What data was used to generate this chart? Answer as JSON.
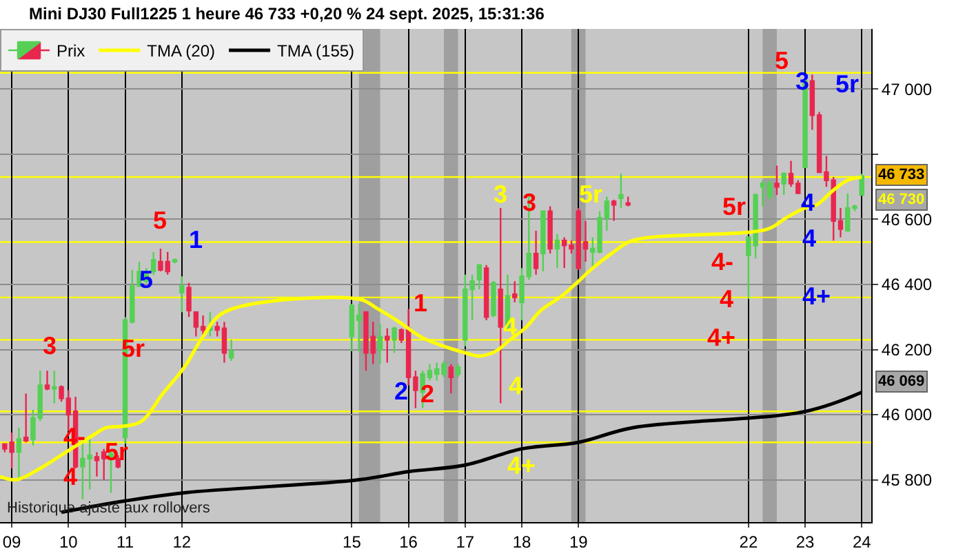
{
  "chart_data": {
    "type": "candlestick",
    "title": "Mini DJ30 Full1225 1 heure 46 733 +0,20 % 24 sept. 2025, 15:31:36",
    "xlim": [
      "2025-09-08T19:00",
      "2025-09-24T04:00"
    ],
    "xticks": [
      {
        "value": "2025-09-09",
        "label": "09"
      },
      {
        "value": "2025-09-10",
        "label": "10"
      },
      {
        "value": "2025-09-11",
        "label": "11"
      },
      {
        "value": "2025-09-12",
        "label": "12"
      },
      {
        "value": "2025-09-15",
        "label": "15"
      },
      {
        "value": "2025-09-16",
        "label": "16"
      },
      {
        "value": "2025-09-17",
        "label": "17"
      },
      {
        "value": "2025-09-18",
        "label": "18"
      },
      {
        "value": "2025-09-19",
        "label": "19"
      },
      {
        "value": "2025-09-22",
        "label": "22"
      },
      {
        "value": "2025-09-23",
        "label": "23"
      },
      {
        "value": "2025-09-24",
        "label": "24"
      }
    ],
    "ylim": [
      45670,
      47185
    ],
    "yticks": [
      {
        "value": 45800,
        "label": "45 800"
      },
      {
        "value": 46000,
        "label": "46 000"
      },
      {
        "value": 46200,
        "label": "46 200"
      },
      {
        "value": 46400,
        "label": "46 400"
      },
      {
        "value": 46600,
        "label": "46 600"
      },
      {
        "value": 46800,
        "label": null
      },
      {
        "value": 47000,
        "label": "47 000"
      }
    ],
    "grid": true,
    "legend": "top left",
    "series": [
      {
        "name": "Prix",
        "x": [
          "2025-09-08T21:00",
          "2025-09-09T00:00",
          "2025-09-09T03:00",
          "2025-09-09T06:00",
          "2025-09-09T09:00",
          "2025-09-09T12:00",
          "2025-09-09T15:00",
          "2025-09-09T18:00",
          "2025-09-09T21:00",
          "2025-09-10T00:00",
          "2025-09-10T03:00",
          "2025-09-10T06:00",
          "2025-09-10T09:00",
          "2025-09-10T12:00",
          "2025-09-10T15:00",
          "2025-09-10T18:00",
          "2025-09-10T21:00",
          "2025-09-11T00:00",
          "2025-09-11T03:00",
          "2025-09-11T06:00",
          "2025-09-11T09:00",
          "2025-09-11T12:00",
          "2025-09-11T15:00",
          "2025-09-11T18:00",
          "2025-09-11T21:00",
          "2025-09-12T00:00",
          "2025-09-12T03:00",
          "2025-09-12T06:00",
          "2025-09-12T09:00",
          "2025-09-12T12:00",
          "2025-09-12T15:00",
          "2025-09-12T18:00",
          "2025-09-12T21:00",
          "2025-09-15T00:00",
          "2025-09-15T03:00",
          "2025-09-15T06:00",
          "2025-09-15T09:00",
          "2025-09-15T12:00",
          "2025-09-15T15:00",
          "2025-09-15T18:00",
          "2025-09-15T21:00",
          "2025-09-16T00:00",
          "2025-09-16T03:00",
          "2025-09-16T06:00",
          "2025-09-16T09:00",
          "2025-09-16T12:00",
          "2025-09-16T15:00",
          "2025-09-16T18:00",
          "2025-09-16T21:00",
          "2025-09-17T00:00",
          "2025-09-17T03:00",
          "2025-09-17T06:00",
          "2025-09-17T09:00",
          "2025-09-17T12:00",
          "2025-09-17T15:00",
          "2025-09-17T18:00",
          "2025-09-17T21:00",
          "2025-09-18T00:00",
          "2025-09-18T03:00",
          "2025-09-18T06:00",
          "2025-09-18T09:00",
          "2025-09-18T12:00",
          "2025-09-18T15:00",
          "2025-09-18T18:00",
          "2025-09-18T21:00",
          "2025-09-19T00:00",
          "2025-09-19T03:00",
          "2025-09-19T06:00",
          "2025-09-19T09:00",
          "2025-09-19T12:00",
          "2025-09-19T15:00",
          "2025-09-19T18:00",
          "2025-09-19T21:00",
          "2025-09-22T00:00",
          "2025-09-22T03:00",
          "2025-09-22T06:00",
          "2025-09-22T09:00",
          "2025-09-22T12:00",
          "2025-09-22T15:00",
          "2025-09-22T18:00",
          "2025-09-22T21:00",
          "2025-09-23T00:00",
          "2025-09-23T03:00",
          "2025-09-23T06:00",
          "2025-09-23T09:00",
          "2025-09-23T12:00",
          "2025-09-23T15:00",
          "2025-09-23T18:00",
          "2025-09-23T21:00",
          "2025-09-24T00:00"
        ],
        "colors": [
          "#e8274f",
          "#e8274f",
          "#55d055",
          "#e8274f",
          "#55d055",
          "#55d055",
          "#e8274f",
          "#55d055",
          "#e8274f",
          "#e8274f",
          "#e8274f",
          "#55d055",
          "#55d055",
          "#e8274f",
          "#e8274f",
          "#55d055",
          "#e8274f",
          "#55d055",
          "#55d055",
          "#55d055",
          "#55d055",
          "#55d055",
          "#e8274f",
          "#e8274f",
          "#55d055",
          "#55d055",
          "#e8274f",
          "#e8274f",
          "#e8274f",
          "#55d055",
          "#e8274f",
          "#e8274f",
          "#55d055",
          "#55d055",
          "#55d055",
          "#e8274f",
          "#e8274f",
          "#55d055",
          "#e8274f",
          "#55d055",
          "#e8274f",
          "#e8274f",
          "#e8274f",
          "#55d055",
          "#55d055",
          "#55d055",
          "#55d055",
          "#e8274f",
          "#55d055",
          "#55d055",
          "#55d055",
          "#55d055",
          "#e8274f",
          "#55d055",
          "#e8274f",
          "#55d055",
          "#e8274f",
          "#55d055",
          "#55d055",
          "#e8274f",
          "#55d055",
          "#e8274f",
          "#55d055",
          "#e8274f",
          "#e8274f",
          "#e8274f",
          "#e8274f",
          "#55d055",
          "#55d055",
          "#55d055",
          "#e8274f",
          "#55d055",
          "#e8274f",
          "#55d055",
          "#55d055",
          "#55d055",
          "#55d055",
          "#e8274f",
          "#55d055",
          "#e8274f",
          "#e8274f",
          "#55d055",
          "#e8274f",
          "#e8274f",
          "#e8274f",
          "#e8274f",
          "#e8274f",
          "#55d055",
          "#55d055",
          "#55d055"
        ],
        "ohlc": [
          [
            45910,
            45910,
            45885,
            45895
          ],
          [
            45915,
            45945,
            45835,
            45885
          ],
          [
            45885,
            45960,
            45800,
            45925
          ],
          [
            45930,
            46065,
            45915,
            45920
          ],
          [
            45925,
            46015,
            45905,
            45990
          ],
          [
            45990,
            46135,
            45980,
            46090
          ],
          [
            46090,
            46135,
            46075,
            46080
          ],
          [
            46080,
            46135,
            46035,
            46085
          ],
          [
            46085,
            46090,
            46040,
            46050
          ],
          [
            46050,
            46075,
            45950,
            46000
          ],
          [
            46010,
            46055,
            45835,
            45840
          ],
          [
            45840,
            45925,
            45740,
            45865
          ],
          [
            45865,
            45925,
            45770,
            45875
          ],
          [
            45870,
            45885,
            45810,
            45860
          ],
          [
            45885,
            45895,
            45800,
            45865
          ],
          [
            45865,
            45895,
            45760,
            45880
          ],
          [
            45865,
            45875,
            45835,
            45840
          ],
          [
            45930,
            46300,
            45910,
            46290
          ],
          [
            46285,
            46445,
            46280,
            46395
          ],
          [
            46395,
            46470,
            46395,
            46440
          ],
          [
            46410,
            46450,
            46405,
            46430
          ],
          [
            46440,
            46500,
            46430,
            46475
          ],
          [
            46470,
            46510,
            46440,
            46445
          ],
          [
            46470,
            46500,
            46430,
            46440
          ],
          [
            46470,
            46480,
            46465,
            46475
          ],
          [
            46375,
            46425,
            46315,
            46395
          ],
          [
            46390,
            46405,
            46300,
            46320
          ],
          [
            46315,
            46315,
            46240,
            46270
          ],
          [
            46270,
            46305,
            46240,
            46260
          ],
          [
            46260,
            46315,
            46240,
            46270
          ],
          [
            46270,
            46285,
            46240,
            46260
          ],
          [
            46265,
            46285,
            46160,
            46190
          ],
          [
            46175,
            46230,
            46165,
            46195
          ],
          [
            46240,
            46340,
            46195,
            46335
          ],
          [
            46290,
            46340,
            46195,
            46305
          ],
          [
            46315,
            46315,
            46135,
            46190
          ],
          [
            46240,
            46285,
            46155,
            46190
          ],
          [
            46200,
            46280,
            46155,
            46240
          ],
          [
            46240,
            46265,
            46160,
            46230
          ],
          [
            46230,
            46270,
            46190,
            46265
          ],
          [
            46260,
            46265,
            46220,
            46230
          ],
          [
            46265,
            46325,
            46090,
            46115
          ],
          [
            46115,
            46135,
            46020,
            46075
          ],
          [
            46070,
            46135,
            46020,
            46125
          ],
          [
            46115,
            46155,
            46105,
            46135
          ],
          [
            46125,
            46160,
            46105,
            46140
          ],
          [
            46125,
            46165,
            46115,
            46155
          ],
          [
            46145,
            46155,
            46065,
            46115
          ],
          [
            46125,
            46155,
            46115,
            46145
          ],
          [
            46230,
            46430,
            46210,
            46385
          ],
          [
            46385,
            46430,
            46290,
            46410
          ],
          [
            46415,
            46460,
            46385,
            46460
          ],
          [
            46450,
            46460,
            46290,
            46300
          ],
          [
            46305,
            46410,
            46300,
            46405
          ],
          [
            46385,
            46635,
            46035,
            46270
          ],
          [
            46270,
            46430,
            46260,
            46365
          ],
          [
            46370,
            46410,
            46345,
            46360
          ],
          [
            46345,
            46450,
            46290,
            46425
          ],
          [
            46425,
            46675,
            46415,
            46495
          ],
          [
            46495,
            46565,
            46430,
            46450
          ],
          [
            46495,
            46625,
            46440,
            46625
          ],
          [
            46625,
            46640,
            46495,
            46510
          ],
          [
            46510,
            46555,
            46450,
            46535
          ],
          [
            46535,
            46545,
            46450,
            46520
          ],
          [
            46520,
            46535,
            46495,
            46510
          ],
          [
            46625,
            46635,
            46445,
            46450
          ],
          [
            46530,
            46595,
            46470,
            46510
          ],
          [
            46500,
            46545,
            46450,
            46510
          ],
          [
            46500,
            46625,
            46495,
            46605
          ],
          [
            46605,
            46670,
            46565,
            46655
          ],
          [
            46655,
            46660,
            46595,
            46645
          ],
          [
            46665,
            46740,
            46635,
            46675
          ],
          [
            46650,
            46670,
            46640,
            46645
          ],
          [
            46490,
            46545,
            46355,
            46545
          ],
          [
            46520,
            46680,
            46480,
            46675
          ],
          [
            46700,
            46720,
            46640,
            46710
          ],
          [
            46670,
            46720,
            46660,
            46710
          ],
          [
            46710,
            46765,
            46675,
            46700
          ],
          [
            46710,
            46745,
            46675,
            46740
          ],
          [
            46740,
            46780,
            46700,
            46710
          ],
          [
            46710,
            46720,
            46680,
            46680
          ],
          [
            46760,
            47025,
            46760,
            47025
          ],
          [
            47025,
            47045,
            46875,
            46920
          ],
          [
            46920,
            46930,
            46745,
            46745
          ],
          [
            46745,
            46795,
            46700,
            46720
          ],
          [
            46720,
            46730,
            46535,
            46595
          ],
          [
            46595,
            46635,
            46545,
            46570
          ],
          [
            46565,
            46680,
            46565,
            46635
          ],
          [
            46635,
            46645,
            46625,
            46640
          ],
          [
            46675,
            46740,
            46675,
            46733
          ]
        ]
      },
      {
        "name": "TMA (20)",
        "type": "line",
        "color": "#ffff00",
        "x": [
          "2025-09-08T19:00",
          "2025-09-09T02:00",
          "2025-09-09T12:00",
          "2025-09-09T23:00",
          "2025-09-10T10:00",
          "2025-09-10T16:00",
          "2025-09-11T00:00",
          "2025-09-11T07:00",
          "2025-09-11T16:00",
          "2025-09-12T01:00",
          "2025-09-12T09:00",
          "2025-09-12T18:00",
          "2025-09-15T03:00",
          "2025-09-15T11:00",
          "2025-09-15T20:00",
          "2025-09-16T05:00",
          "2025-09-16T13:00",
          "2025-09-17T00:00",
          "2025-09-17T06:00",
          "2025-09-17T13:00",
          "2025-09-17T19:00",
          "2025-09-18T02:00",
          "2025-09-18T08:00",
          "2025-09-18T17:00",
          "2025-09-19T00:00",
          "2025-09-19T06:00",
          "2025-09-19T14:00",
          "2025-09-19T23:00",
          "2025-09-22T08:00",
          "2025-09-22T16:00",
          "2025-09-23T00:00",
          "2025-09-23T05:00",
          "2025-09-23T12:00",
          "2025-09-23T18:00",
          "2025-09-24T00:00"
        ],
        "values": [
          45810,
          45800,
          45835,
          45885,
          45935,
          45960,
          45965,
          45980,
          46065,
          46145,
          46240,
          46315,
          46355,
          46325,
          46285,
          46240,
          46215,
          46190,
          46180,
          46195,
          46230,
          46270,
          46320,
          46365,
          46410,
          46450,
          46495,
          46535,
          46570,
          46605,
          46635,
          46645,
          46690,
          46720,
          46730
        ]
      },
      {
        "name": "TMA (155)",
        "type": "line",
        "color": "#000000",
        "x": [
          "2025-09-09T21:00",
          "2025-09-11T00:00",
          "2025-09-12T01:00",
          "2025-09-15T03:00",
          "2025-09-16T00:00",
          "2025-09-17T00:00",
          "2025-09-18T00:00",
          "2025-09-19T00:00",
          "2025-09-19T23:00",
          "2025-09-23T00:00",
          "2025-09-24T00:00"
        ],
        "values": [
          45700,
          45735,
          45760,
          45800,
          45825,
          45845,
          45895,
          45915,
          45960,
          46010,
          46069
        ]
      }
    ],
    "ref_lines": [
      {
        "axis": "y",
        "value": 47050,
        "color": "#ffff00"
      },
      {
        "axis": "y",
        "value": 46730,
        "color": "#ffff00"
      },
      {
        "axis": "y",
        "value": 46530,
        "color": "#ffff00"
      },
      {
        "axis": "y",
        "value": 46360,
        "color": "#ffff00"
      },
      {
        "axis": "y",
        "value": 46230,
        "color": "#ffff00"
      },
      {
        "axis": "y",
        "value": 46010,
        "color": "#ffff00"
      },
      {
        "axis": "y",
        "value": 45915,
        "color": "#ffff00"
      }
    ],
    "bands": [
      {
        "axis": "x",
        "from": "2025-09-15T03:00",
        "to": "2025-09-15T12:00",
        "color": "#808080"
      },
      {
        "axis": "x",
        "from": "2025-09-16T15:00",
        "to": "2025-09-16T21:00",
        "color": "#808080"
      },
      {
        "axis": "x",
        "from": "2025-09-18T21:00",
        "to": "2025-09-19T03:00",
        "color": "#808080"
      },
      {
        "axis": "x",
        "from": "2025-09-22T06:00",
        "to": "2025-09-22T12:00",
        "color": "#808080"
      }
    ],
    "annotations": [
      "Historique ajusté aux rollovers",
      "46 733",
      "46 730",
      "46 069",
      "3",
      "4-",
      "4",
      "5r",
      "5r",
      "5",
      "5",
      "1",
      "1",
      "2",
      "2",
      "3",
      "3",
      "4",
      "4",
      "4+",
      "5r",
      "5r",
      "4-",
      "4",
      "4+",
      "5",
      "3",
      "4",
      "4",
      "4+",
      "5r"
    ]
  }
}
